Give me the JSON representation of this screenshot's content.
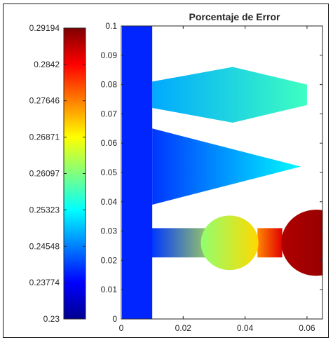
{
  "chart_data": {
    "type": "heatmap",
    "title": "Porcentaje de Error",
    "xlabel": "",
    "ylabel": "",
    "xlim": [
      0,
      0.065
    ],
    "ylim": [
      0,
      0.1
    ],
    "x_ticks": [
      "0",
      "0.02",
      "0.04",
      "0.06"
    ],
    "y_ticks": [
      "0",
      "0.01",
      "0.02",
      "0.03",
      "0.04",
      "0.05",
      "0.06",
      "0.07",
      "0.08",
      "0.09",
      "0.1"
    ],
    "grid": false,
    "colormap": "jet",
    "colorbar": {
      "placement": "left",
      "min": 0.23,
      "max": 0.29194,
      "tick_labels": [
        "0.23",
        "0.23774",
        "0.24548",
        "0.25323",
        "0.26097",
        "0.26871",
        "0.27646",
        "0.2842",
        "0.29194"
      ],
      "tick_values": [
        0.23,
        0.23774,
        0.24548,
        0.25323,
        0.26097,
        0.26871,
        0.27646,
        0.2842,
        0.29194
      ]
    },
    "regions": [
      {
        "name": "vertical-channel",
        "x_range": [
          0,
          0.01
        ],
        "y_range": [
          0,
          0.1
        ],
        "value_start": 0.239,
        "value_end": 0.241
      },
      {
        "name": "upper-arm",
        "x_range": [
          0.01,
          0.06
        ],
        "y_range": [
          0.067,
          0.086
        ],
        "value_start": 0.248,
        "value_end": 0.257
      },
      {
        "name": "middle-arm",
        "x_range": [
          0.01,
          0.058
        ],
        "y_range": [
          0.039,
          0.065
        ],
        "value_start": 0.241,
        "value_end": 0.253
      },
      {
        "name": "lower-channel",
        "x_range": [
          0.01,
          0.035
        ],
        "y_range": [
          0.021,
          0.031
        ],
        "value_start": 0.241,
        "value_end": 0.266
      },
      {
        "name": "first-circle",
        "center": [
          0.035,
          0.026
        ],
        "radius": 0.0093,
        "value_start": 0.262,
        "value_end": 0.271
      },
      {
        "name": "connector",
        "x_range": [
          0.044,
          0.052
        ],
        "y_range": [
          0.021,
          0.031
        ],
        "value_start": 0.276,
        "value_end": 0.286
      },
      {
        "name": "second-circle",
        "center": [
          0.063,
          0.026
        ],
        "radius": 0.0113,
        "value_start": 0.289,
        "value_end": 0.2915
      }
    ]
  }
}
